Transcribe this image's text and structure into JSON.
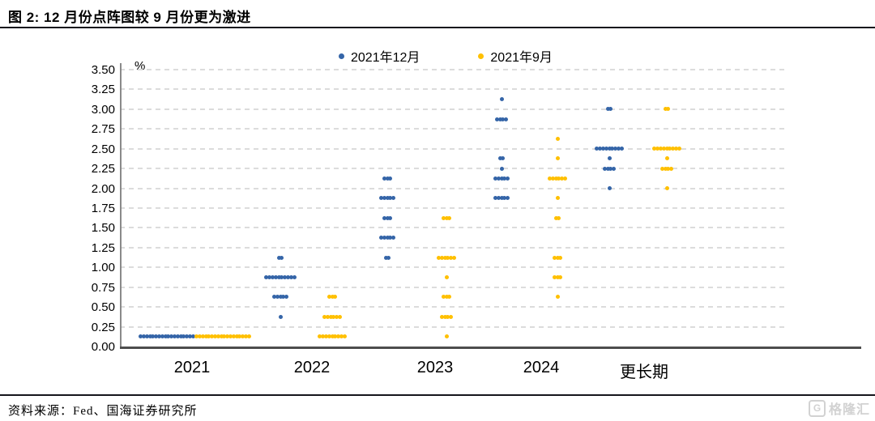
{
  "header": {
    "title": "图 2:  12 月份点阵图较 9 月份更为激进"
  },
  "footer": {
    "source": "资料来源：Fed、国海证券研究所",
    "logo_text": "格隆汇",
    "logo_letter": "G"
  },
  "colors": {
    "dec_blue": "#3565A8",
    "sep_yellow": "#FFC000",
    "gridline": "#DCDCDC",
    "axis": "#4D4D4D",
    "watermark": "#D2D2D2"
  },
  "chart_data": {
    "type": "scatter",
    "subtype": "fed-dot-plot",
    "title": "图 2:  12 月份点阵图较 9 月份更为激进",
    "unit_label": "%",
    "ylabel": "",
    "xlabel": "",
    "ylim": [
      0.0,
      3.5
    ],
    "ytick_step": 0.25,
    "ytick_labels": [
      "0.00",
      "0.25",
      "0.50",
      "0.75",
      "1.00",
      "1.25",
      "1.50",
      "1.75",
      "2.00",
      "2.25",
      "2.50",
      "2.75",
      "3.00",
      "3.25",
      "3.50"
    ],
    "categories": [
      "2021",
      "2022",
      "2023",
      "2024",
      "更长期"
    ],
    "grid": "dashed-horizontal",
    "legend_position": "top-center",
    "series": [
      {
        "name": "2021年12月",
        "color": "#3565A8",
        "dots": [
          {
            "c": "2021",
            "v": 0.125,
            "n": 18
          },
          {
            "c": "2022",
            "v": 1.125,
            "n": 2
          },
          {
            "c": "2022",
            "v": 0.875,
            "n": 10
          },
          {
            "c": "2022",
            "v": 0.625,
            "n": 5
          },
          {
            "c": "2022",
            "v": 0.375,
            "n": 1
          },
          {
            "c": "2023",
            "v": 2.125,
            "n": 3
          },
          {
            "c": "2023",
            "v": 1.875,
            "n": 5
          },
          {
            "c": "2023",
            "v": 1.625,
            "n": 3
          },
          {
            "c": "2023",
            "v": 1.375,
            "n": 5
          },
          {
            "c": "2023",
            "v": 1.125,
            "n": 2
          },
          {
            "c": "2024",
            "v": 3.125,
            "n": 1
          },
          {
            "c": "2024",
            "v": 2.875,
            "n": 4
          },
          {
            "c": "2024",
            "v": 2.375,
            "n": 2
          },
          {
            "c": "2024",
            "v": 2.25,
            "n": 1
          },
          {
            "c": "2024",
            "v": 2.125,
            "n": 5
          },
          {
            "c": "2024",
            "v": 1.875,
            "n": 5
          },
          {
            "c": "更长期",
            "v": 3.0,
            "n": 2
          },
          {
            "c": "更长期",
            "v": 2.5,
            "n": 9
          },
          {
            "c": "更长期",
            "v": 2.375,
            "n": 1
          },
          {
            "c": "更长期",
            "v": 2.25,
            "n": 4
          },
          {
            "c": "更长期",
            "v": 2.0,
            "n": 1
          }
        ]
      },
      {
        "name": "2021年9月",
        "color": "#FFC000",
        "dots": [
          {
            "c": "2021",
            "v": 0.125,
            "n": 18
          },
          {
            "c": "2022",
            "v": 0.625,
            "n": 3
          },
          {
            "c": "2022",
            "v": 0.375,
            "n": 6
          },
          {
            "c": "2022",
            "v": 0.125,
            "n": 9
          },
          {
            "c": "2023",
            "v": 1.625,
            "n": 3
          },
          {
            "c": "2023",
            "v": 1.125,
            "n": 6
          },
          {
            "c": "2023",
            "v": 0.875,
            "n": 1
          },
          {
            "c": "2023",
            "v": 0.625,
            "n": 3
          },
          {
            "c": "2023",
            "v": 0.375,
            "n": 4
          },
          {
            "c": "2023",
            "v": 0.125,
            "n": 1
          },
          {
            "c": "2024",
            "v": 2.625,
            "n": 1
          },
          {
            "c": "2024",
            "v": 2.375,
            "n": 1
          },
          {
            "c": "2024",
            "v": 2.125,
            "n": 6
          },
          {
            "c": "2024",
            "v": 1.875,
            "n": 1
          },
          {
            "c": "2024",
            "v": 1.625,
            "n": 2
          },
          {
            "c": "2024",
            "v": 1.125,
            "n": 3
          },
          {
            "c": "2024",
            "v": 0.875,
            "n": 3
          },
          {
            "c": "2024",
            "v": 0.625,
            "n": 1
          },
          {
            "c": "更长期",
            "v": 3.0,
            "n": 2
          },
          {
            "c": "更长期",
            "v": 2.5,
            "n": 9
          },
          {
            "c": "更长期",
            "v": 2.375,
            "n": 1
          },
          {
            "c": "更长期",
            "v": 2.25,
            "n": 4
          },
          {
            "c": "更长期",
            "v": 2.0,
            "n": 1
          }
        ]
      }
    ]
  }
}
